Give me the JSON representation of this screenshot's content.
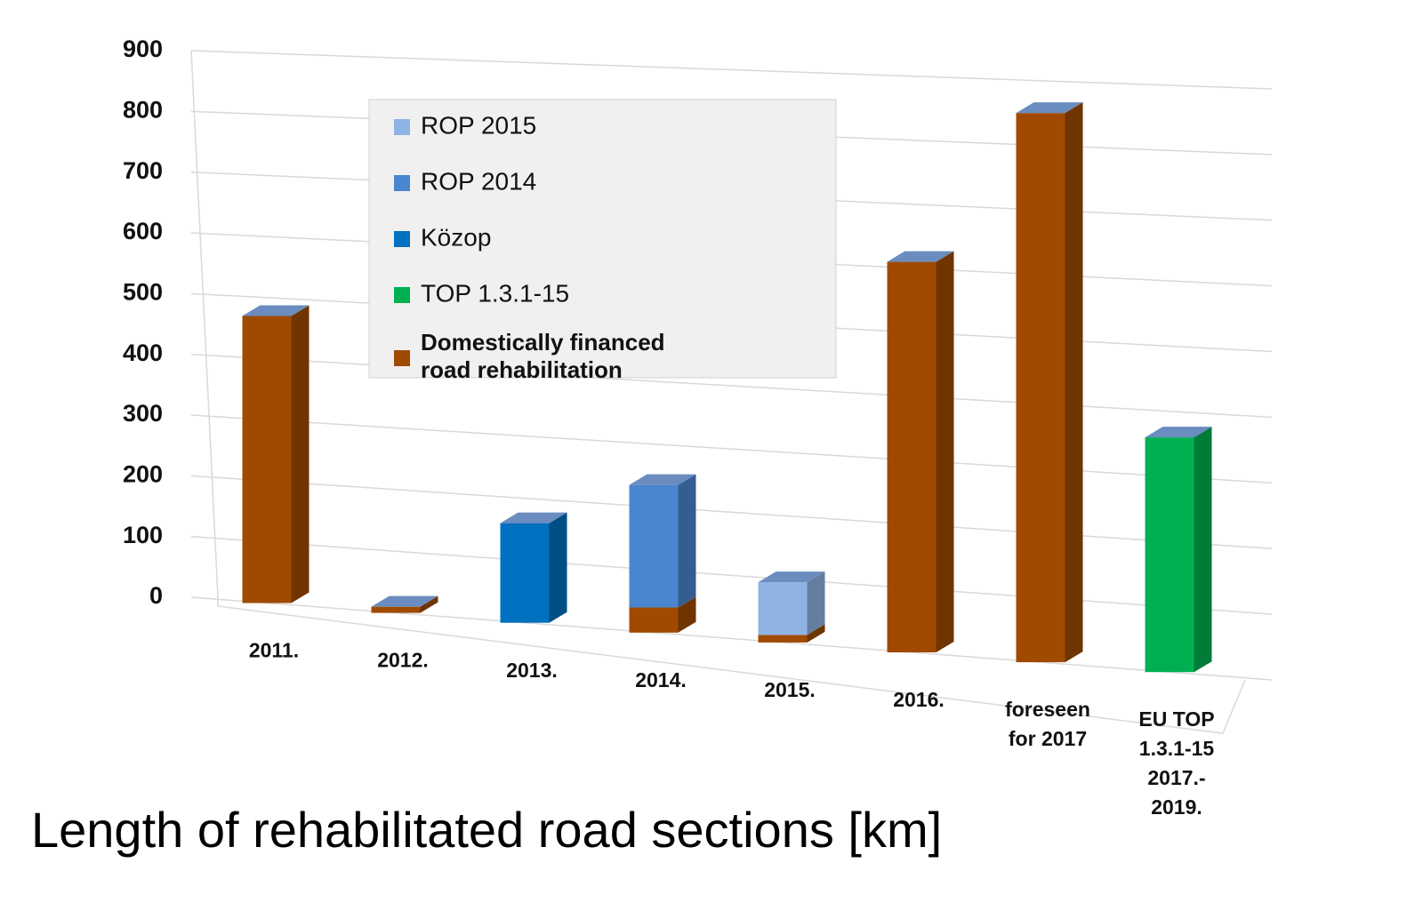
{
  "chart_data": {
    "type": "bar3d_stacked",
    "title": "Length of rehabilitated road sections [km]",
    "categories": [
      "2011.",
      "2012.",
      "2013.",
      "2014.",
      "2015.",
      "2016.",
      "foreseen\nfor 2017",
      "EU    TOP\n1.3.1-15\n2017.-\n2019."
    ],
    "series": [
      {
        "name": "Domestically financed\nroad rehabilitation",
        "color": "#a04a00",
        "values": [
          470,
          10,
          0,
          40,
          12,
          610,
          850,
          0
        ]
      },
      {
        "name": "TOP 1.3.1-15",
        "color": "#00b050",
        "values": [
          0,
          0,
          0,
          0,
          0,
          0,
          0,
          360
        ]
      },
      {
        "name": "Közop",
        "color": "#0070c0",
        "values": [
          0,
          0,
          160,
          0,
          0,
          0,
          0,
          0
        ]
      },
      {
        "name": "ROP 2014",
        "color": "#4a86d0",
        "values": [
          0,
          0,
          0,
          195,
          0,
          0,
          0,
          0
        ]
      },
      {
        "name": "ROP 2015",
        "color": "#8fb4e3",
        "values": [
          0,
          0,
          0,
          0,
          83,
          0,
          0,
          0
        ]
      }
    ],
    "ylim": [
      0,
      900
    ],
    "yticks": [
      0,
      100,
      200,
      300,
      400,
      500,
      600,
      700,
      800,
      900
    ],
    "grid": true
  }
}
